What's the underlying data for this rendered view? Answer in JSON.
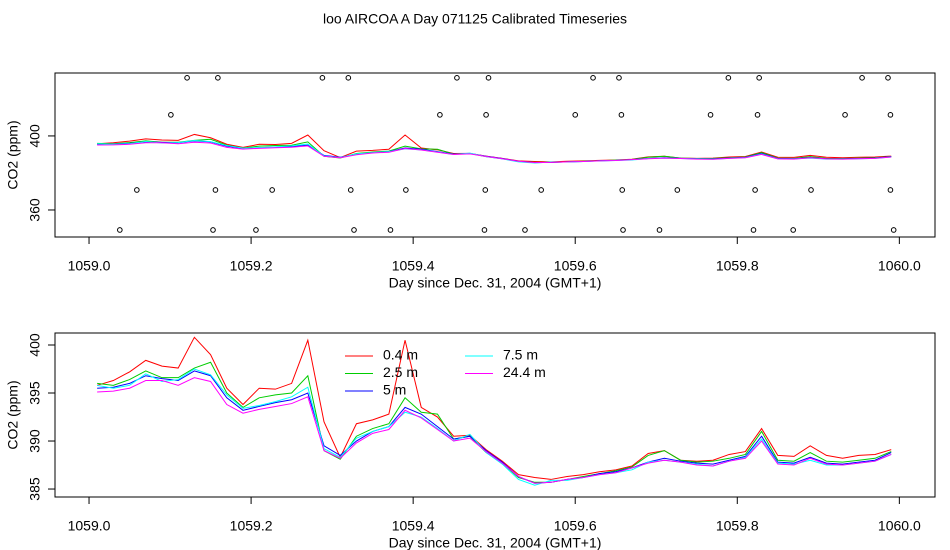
{
  "chart_data": [
    {
      "type": "line",
      "title": "loo AIRCOA A  Day 071125  Calibrated Timeseries",
      "xlabel": "Day since Dec. 31, 2004 (GMT+1)",
      "ylabel": "CO2 (ppm)",
      "xlim": [
        1058.958,
        1060.044
      ],
      "ylim": [
        345.4,
        434
      ],
      "xticks": [
        {
          "value": 1059,
          "label": "1059.0"
        },
        {
          "value": 1059.2,
          "label": "1059.2"
        },
        {
          "value": 1059.4,
          "label": "1059.4"
        },
        {
          "value": 1059.6,
          "label": "1059.6"
        },
        {
          "value": 1059.8,
          "label": "1059.8"
        },
        {
          "value": 1060,
          "label": "1060.0"
        }
      ],
      "yticks": [
        360,
        400
      ],
      "x": [
        1059.01,
        1059.03,
        1059.05,
        1059.07,
        1059.09,
        1059.11,
        1059.13,
        1059.15,
        1059.17,
        1059.19,
        1059.21,
        1059.23,
        1059.25,
        1059.27,
        1059.29,
        1059.31,
        1059.33,
        1059.35,
        1059.37,
        1059.39,
        1059.41,
        1059.43,
        1059.45,
        1059.47,
        1059.49,
        1059.51,
        1059.53,
        1059.55,
        1059.57,
        1059.59,
        1059.61,
        1059.63,
        1059.65,
        1059.67,
        1059.69,
        1059.71,
        1059.73,
        1059.75,
        1059.77,
        1059.79,
        1059.81,
        1059.83,
        1059.85,
        1059.87,
        1059.89,
        1059.91,
        1059.93,
        1059.95,
        1059.97,
        1059.99
      ],
      "series": [
        {
          "color": "#ff0000",
          "values": [
            395.8,
            396.3,
            397.2,
            398.4,
            397.8,
            397.6,
            400.8,
            399.0,
            395.5,
            393.8,
            395.5,
            395.4,
            396.0,
            400.5,
            392.0,
            388.3,
            391.8,
            392.2,
            392.8,
            400.5,
            393.5,
            392.5,
            390.5,
            390.6,
            389.1,
            387.9,
            386.5,
            386.2,
            386.0,
            386.3,
            386.5,
            386.8,
            387.0,
            387.4,
            388.7,
            389.0,
            388.0,
            387.9,
            388.0,
            388.6,
            388.9,
            391.3,
            388.5,
            388.4,
            389.5,
            388.5,
            388.2,
            388.5,
            388.6,
            389.1
          ]
        },
        {
          "color": "#00cd00",
          "values": [
            396.0,
            395.8,
            396.4,
            397.3,
            396.6,
            396.6,
            397.6,
            398.2,
            395.0,
            393.5,
            394.5,
            394.8,
            395.0,
            396.8,
            389.0,
            388.1,
            390.5,
            391.3,
            391.8,
            394.5,
            393.0,
            392.8,
            390.2,
            390.5,
            388.8,
            387.7,
            386.2,
            385.7,
            385.7,
            386.0,
            386.3,
            386.6,
            386.9,
            387.3,
            388.5,
            389.0,
            388.0,
            387.8,
            387.9,
            388.2,
            388.6,
            391.0,
            388.0,
            387.9,
            388.8,
            387.9,
            387.8,
            388.0,
            388.2,
            388.9
          ]
        },
        {
          "color": "#0000ff",
          "values": [
            395.5,
            395.6,
            396.0,
            396.8,
            396.5,
            396.3,
            397.3,
            396.8,
            394.5,
            393.2,
            393.6,
            394.0,
            394.3,
            395.0,
            389.5,
            388.5,
            390.0,
            391.0,
            391.5,
            393.5,
            392.8,
            391.5,
            390.2,
            390.5,
            389.0,
            387.8,
            386.3,
            385.6,
            385.7,
            386.0,
            386.2,
            386.6,
            386.8,
            387.2,
            387.8,
            388.2,
            387.9,
            387.7,
            387.6,
            388.0,
            388.4,
            390.5,
            387.8,
            387.7,
            388.3,
            387.7,
            387.6,
            387.8,
            388.0,
            388.8
          ]
        },
        {
          "color": "#00ffff",
          "values": [
            395.8,
            395.5,
            395.8,
            397.0,
            396.2,
            396.4,
            397.5,
            396.9,
            394.8,
            393.4,
            393.7,
            394.1,
            394.6,
            395.6,
            389.2,
            388.3,
            390.3,
            391.0,
            391.5,
            393.0,
            392.5,
            391.3,
            390.0,
            390.7,
            388.8,
            387.6,
            386.0,
            385.4,
            385.9,
            385.9,
            386.2,
            386.5,
            386.7,
            387.0,
            387.8,
            388.0,
            387.8,
            387.6,
            387.4,
            387.9,
            388.3,
            390.2,
            387.7,
            387.6,
            388.0,
            387.5,
            387.5,
            387.7,
            387.9,
            388.6
          ]
        },
        {
          "color": "#ff00ff",
          "values": [
            395.1,
            395.2,
            395.5,
            396.3,
            396.3,
            395.8,
            396.6,
            396.2,
            393.8,
            392.9,
            393.3,
            393.6,
            393.9,
            394.6,
            389.0,
            388.2,
            389.8,
            390.8,
            391.2,
            393.2,
            392.4,
            391.2,
            390.0,
            390.3,
            388.9,
            387.7,
            386.3,
            385.6,
            385.7,
            386.0,
            386.2,
            386.5,
            386.7,
            387.2,
            387.7,
            388.0,
            387.8,
            387.5,
            387.4,
            387.9,
            388.2,
            390.0,
            387.6,
            387.5,
            388.2,
            387.6,
            387.5,
            387.7,
            387.9,
            388.6
          ]
        }
      ],
      "points": {
        "color": "#000000",
        "x": [
          1059.121,
          1059.159,
          1059.288,
          1059.32,
          1059.454,
          1059.493,
          1059.622,
          1059.654,
          1059.789,
          1059.827,
          1059.954,
          1059.986,
          1059.101,
          1059.433,
          1059.49,
          1059.6,
          1059.657,
          1059.767,
          1059.825,
          1059.933,
          1059.989,
          1059.059,
          1059.156,
          1059.226,
          1059.323,
          1059.391,
          1059.489,
          1059.558,
          1059.658,
          1059.726,
          1059.822,
          1059.891,
          1059.989,
          1059.038,
          1059.153,
          1059.206,
          1059.327,
          1059.372,
          1059.488,
          1059.538,
          1059.659,
          1059.704,
          1059.82,
          1059.869,
          1059.993
        ],
        "y": [
          431.4,
          431.4,
          431.4,
          431.4,
          431.4,
          431.4,
          431.4,
          431.4,
          431.4,
          431.4,
          431.4,
          431.4,
          411.4,
          411.4,
          411.4,
          411.4,
          411.4,
          411.4,
          411.4,
          411.4,
          411.4,
          370.8,
          370.8,
          370.8,
          370.8,
          370.8,
          370.8,
          370.8,
          370.8,
          370.8,
          370.8,
          370.8,
          370.8,
          349.2,
          349.2,
          349.2,
          349.2,
          349.2,
          349.2,
          349.2,
          349.2,
          349.2,
          349.2,
          349.2,
          349.2
        ]
      }
    },
    {
      "type": "line",
      "xlabel": "Day since Dec. 31, 2004 (GMT+1)",
      "ylabel": "CO2 (ppm)",
      "legend": "top",
      "xlim": [
        1058.958,
        1060.044
      ],
      "ylim": [
        384.17,
        401.25
      ],
      "xticks": [
        {
          "value": 1059,
          "label": "1059.0"
        },
        {
          "value": 1059.2,
          "label": "1059.2"
        },
        {
          "value": 1059.4,
          "label": "1059.4"
        },
        {
          "value": 1059.6,
          "label": "1059.6"
        },
        {
          "value": 1059.8,
          "label": "1059.8"
        },
        {
          "value": 1060,
          "label": "1060.0"
        }
      ],
      "yticks": [
        385,
        390,
        395,
        400
      ],
      "x": [
        1059.01,
        1059.03,
        1059.05,
        1059.07,
        1059.09,
        1059.11,
        1059.13,
        1059.15,
        1059.17,
        1059.19,
        1059.21,
        1059.23,
        1059.25,
        1059.27,
        1059.29,
        1059.31,
        1059.33,
        1059.35,
        1059.37,
        1059.39,
        1059.41,
        1059.43,
        1059.45,
        1059.47,
        1059.49,
        1059.51,
        1059.53,
        1059.55,
        1059.57,
        1059.59,
        1059.61,
        1059.63,
        1059.65,
        1059.67,
        1059.69,
        1059.71,
        1059.73,
        1059.75,
        1059.77,
        1059.79,
        1059.81,
        1059.83,
        1059.85,
        1059.87,
        1059.89,
        1059.91,
        1059.93,
        1059.95,
        1059.97,
        1059.99
      ],
      "series": [
        {
          "name": "0.4 m",
          "color": "#ff0000",
          "values": [
            395.8,
            396.3,
            397.2,
            398.4,
            397.8,
            397.6,
            400.8,
            399.0,
            395.5,
            393.8,
            395.5,
            395.4,
            396.0,
            400.5,
            392.0,
            388.3,
            391.8,
            392.2,
            392.8,
            400.5,
            393.5,
            392.5,
            390.5,
            390.6,
            389.1,
            387.9,
            386.5,
            386.2,
            386.0,
            386.3,
            386.5,
            386.8,
            387.0,
            387.4,
            388.7,
            389.0,
            388.0,
            387.9,
            388.0,
            388.6,
            388.9,
            391.3,
            388.5,
            388.4,
            389.5,
            388.5,
            388.2,
            388.5,
            388.6,
            389.1
          ]
        },
        {
          "name": "2.5 m",
          "color": "#00cd00",
          "values": [
            396.0,
            395.8,
            396.4,
            397.3,
            396.6,
            396.6,
            397.6,
            398.2,
            395.0,
            393.5,
            394.5,
            394.8,
            395.0,
            396.8,
            389.0,
            388.1,
            390.5,
            391.3,
            391.8,
            394.5,
            393.0,
            392.8,
            390.2,
            390.5,
            388.8,
            387.7,
            386.2,
            385.7,
            385.7,
            386.0,
            386.3,
            386.6,
            386.9,
            387.3,
            388.5,
            389.0,
            388.0,
            387.8,
            387.9,
            388.2,
            388.6,
            391.0,
            388.0,
            387.9,
            388.8,
            387.9,
            387.8,
            388.0,
            388.2,
            388.9
          ]
        },
        {
          "name": "5 m",
          "color": "#0000ff",
          "values": [
            395.5,
            395.6,
            396.0,
            396.8,
            396.5,
            396.3,
            397.3,
            396.8,
            394.5,
            393.2,
            393.6,
            394.0,
            394.3,
            395.0,
            389.5,
            388.5,
            390.0,
            391.0,
            391.5,
            393.5,
            392.8,
            391.5,
            390.2,
            390.5,
            389.0,
            387.8,
            386.3,
            385.6,
            385.7,
            386.0,
            386.2,
            386.6,
            386.8,
            387.2,
            387.8,
            388.2,
            387.9,
            387.7,
            387.6,
            388.0,
            388.4,
            390.5,
            387.8,
            387.7,
            388.3,
            387.7,
            387.6,
            387.8,
            388.0,
            388.8
          ]
        },
        {
          "name": "7.5 m",
          "color": "#00ffff",
          "values": [
            395.8,
            395.5,
            395.8,
            397.0,
            396.2,
            396.4,
            397.5,
            396.9,
            394.8,
            393.4,
            393.7,
            394.1,
            394.6,
            395.6,
            389.2,
            388.3,
            390.3,
            391.0,
            391.5,
            393.0,
            392.5,
            391.3,
            390.0,
            390.7,
            388.8,
            387.6,
            386.0,
            385.4,
            385.9,
            385.9,
            386.2,
            386.5,
            386.7,
            387.0,
            387.8,
            388.0,
            387.8,
            387.6,
            387.4,
            387.9,
            388.3,
            390.2,
            387.7,
            387.6,
            388.0,
            387.5,
            387.5,
            387.7,
            387.9,
            388.6
          ]
        },
        {
          "name": "24.4 m",
          "color": "#ff00ff",
          "values": [
            395.1,
            395.2,
            395.5,
            396.3,
            396.3,
            395.8,
            396.6,
            396.2,
            393.8,
            392.9,
            393.3,
            393.6,
            393.9,
            394.6,
            389.0,
            388.2,
            389.8,
            390.8,
            391.2,
            393.2,
            392.4,
            391.2,
            390.0,
            390.3,
            388.9,
            387.7,
            386.3,
            385.6,
            385.7,
            386.0,
            386.2,
            386.5,
            386.7,
            387.2,
            387.7,
            388.0,
            387.8,
            387.5,
            387.4,
            387.9,
            388.2,
            390.0,
            387.6,
            387.5,
            388.2,
            387.6,
            387.5,
            387.7,
            387.9,
            388.6
          ]
        }
      ]
    }
  ]
}
